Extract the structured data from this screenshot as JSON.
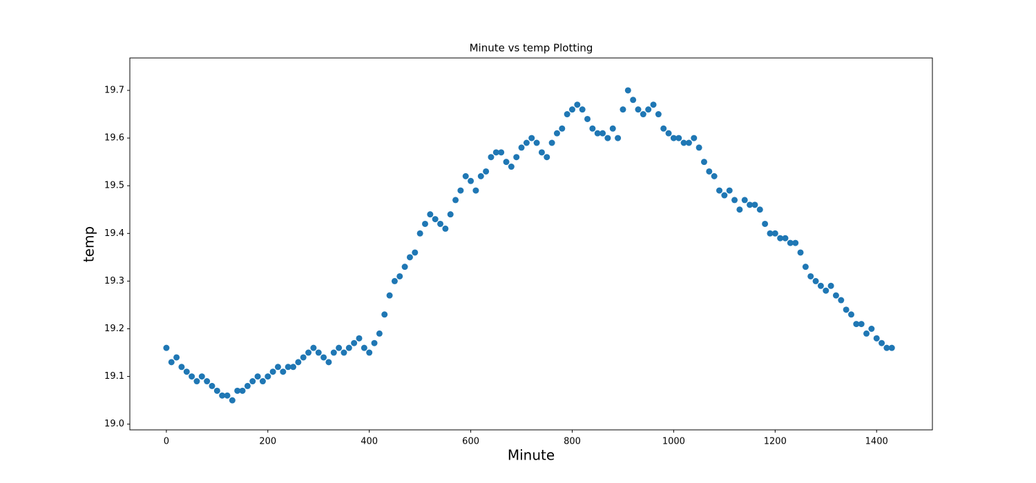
{
  "chart_data": {
    "type": "scatter",
    "title": "Minute vs temp Plotting",
    "x_label": "Minute",
    "y_label": "temp",
    "x": [
      0,
      10,
      20,
      30,
      40,
      50,
      60,
      70,
      80,
      90,
      100,
      110,
      120,
      130,
      140,
      150,
      160,
      170,
      180,
      190,
      200,
      210,
      220,
      230,
      240,
      250,
      260,
      270,
      280,
      290,
      300,
      310,
      320,
      330,
      340,
      350,
      360,
      370,
      380,
      390,
      400,
      410,
      420,
      430,
      440,
      450,
      460,
      470,
      480,
      490,
      500,
      510,
      520,
      530,
      540,
      550,
      560,
      570,
      580,
      590,
      600,
      610,
      620,
      630,
      640,
      650,
      660,
      670,
      680,
      690,
      700,
      710,
      720,
      730,
      740,
      750,
      760,
      770,
      780,
      790,
      800,
      810,
      820,
      830,
      840,
      850,
      860,
      870,
      880,
      890,
      900,
      910,
      920,
      930,
      940,
      950,
      960,
      970,
      980,
      990,
      1000,
      1010,
      1020,
      1030,
      1040,
      1050,
      1060,
      1070,
      1080,
      1090,
      1100,
      1110,
      1120,
      1130,
      1140,
      1150,
      1160,
      1170,
      1180,
      1190,
      1200,
      1210,
      1220,
      1230,
      1240,
      1250,
      1260,
      1270,
      1280,
      1290,
      1300,
      1310,
      1320,
      1330,
      1340,
      1350,
      1360,
      1370,
      1380,
      1390,
      1400,
      1410,
      1420,
      1430
    ],
    "series": [
      {
        "color": "#1f77b4",
        "values": [
          19.16,
          19.13,
          19.14,
          19.12,
          19.11,
          19.1,
          19.09,
          19.1,
          19.09,
          19.08,
          19.07,
          19.06,
          19.06,
          19.05,
          19.07,
          19.07,
          19.08,
          19.09,
          19.1,
          19.09,
          19.1,
          19.11,
          19.12,
          19.11,
          19.12,
          19.12,
          19.13,
          19.14,
          19.15,
          19.16,
          19.15,
          19.14,
          19.13,
          19.15,
          19.16,
          19.15,
          19.16,
          19.17,
          19.18,
          19.16,
          19.15,
          19.17,
          19.19,
          19.23,
          19.27,
          19.3,
          19.31,
          19.33,
          19.35,
          19.36,
          19.4,
          19.42,
          19.44,
          19.43,
          19.42,
          19.41,
          19.44,
          19.47,
          19.49,
          19.52,
          19.51,
          19.49,
          19.52,
          19.53,
          19.56,
          19.57,
          19.57,
          19.55,
          19.54,
          19.56,
          19.58,
          19.59,
          19.6,
          19.59,
          19.57,
          19.56,
          19.59,
          19.61,
          19.62,
          19.65,
          19.66,
          19.67,
          19.66,
          19.64,
          19.62,
          19.61,
          19.61,
          19.6,
          19.62,
          19.6,
          19.66,
          19.7,
          19.68,
          19.66,
          19.65,
          19.66,
          19.67,
          19.65,
          19.62,
          19.61,
          19.6,
          19.6,
          19.59,
          19.59,
          19.6,
          19.58,
          19.55,
          19.53,
          19.52,
          19.49,
          19.48,
          19.49,
          19.47,
          19.45,
          19.47,
          19.46,
          19.46,
          19.45,
          19.42,
          19.4,
          19.4,
          19.39,
          19.39,
          19.38,
          19.38,
          19.36,
          19.33,
          19.31,
          19.3,
          19.29,
          19.28,
          19.29,
          19.27,
          19.26,
          19.24,
          19.23,
          19.21,
          19.21,
          19.19,
          19.2,
          19.18,
          19.17,
          19.16,
          19.16
        ]
      }
    ],
    "xlim": [
      -72,
      1510
    ],
    "ylim": [
      18.988,
      19.768
    ],
    "xticks": [
      0,
      200,
      400,
      600,
      800,
      1000,
      1200,
      1400
    ],
    "yticks": [
      {
        "value": 19,
        "label": "19.0"
      },
      19.1,
      19.2,
      19.3,
      19.4,
      19.5,
      19.6,
      19.7
    ]
  }
}
